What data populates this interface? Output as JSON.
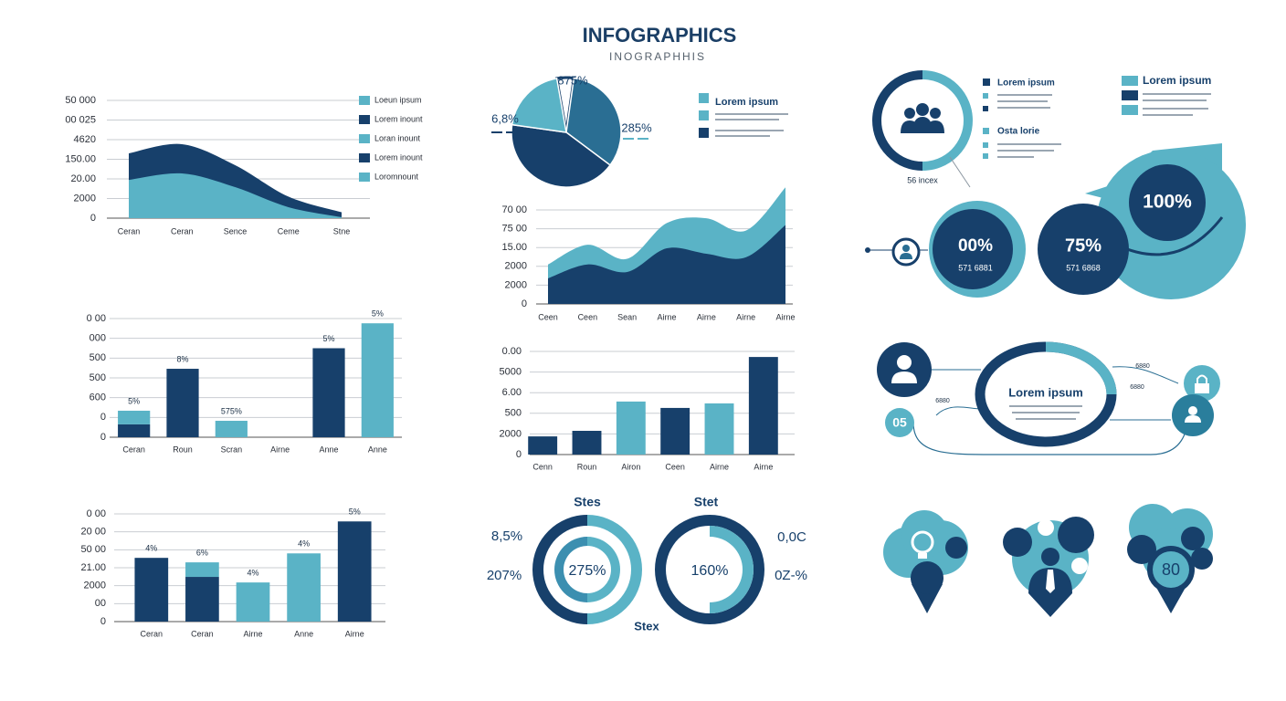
{
  "title": "INFOGRAPHICS",
  "subtitle": "INOGRAPHHIS",
  "chart_data": [
    {
      "type": "area",
      "categories": [
        "Ceran",
        "Ceran",
        "Sence",
        "Ceme",
        "Stne"
      ],
      "series": [
        {
          "color": "#17406b",
          "values": [
            33,
            37.7,
            27,
            11,
            3
          ]
        },
        {
          "color": "#5ab3c6",
          "values": [
            19.5,
            22.8,
            15.8,
            5.6,
            0.5
          ]
        }
      ],
      "ylim": [
        0,
        60
      ],
      "yticks": [
        0,
        {
          "value": 10,
          "label": "2000"
        },
        {
          "value": 20,
          "label": "20.00"
        },
        {
          "value": 30,
          "label": "150.00"
        },
        {
          "value": 40,
          "label": "4620"
        },
        {
          "value": 50,
          "label": "00 025"
        },
        {
          "value": 60,
          "label": "50 000"
        }
      ],
      "grid": true,
      "legend": [
        {
          "label": "Loeun ipsum",
          "color": "#5ab3c6"
        },
        {
          "label": "Lorem inount",
          "color": "#17406b"
        },
        {
          "label": "Loran inount",
          "color": "#5ab3c6"
        },
        {
          "label": "Lorem inount",
          "color": "#17406b"
        },
        {
          "label": "Loromnount",
          "color": "#5ab3c6"
        }
      ]
    },
    {
      "type": "pie",
      "values": [
        5,
        33,
        42,
        20
      ],
      "colors": [
        "#ffffff",
        "#2a6e93",
        "#17406b",
        "#5ab3c6"
      ],
      "annotations": [
        "875%",
        "285%",
        "6,8%"
      ],
      "legend_title": "Lorem ipsum",
      "legend_colors": [
        "#5ab3c6",
        "#5ab3c6",
        "#17406b"
      ]
    },
    {
      "type": "area",
      "categories": [
        "Ceen",
        "Ceen",
        "Sean",
        "Airne",
        "Airne",
        "Airne",
        "Airne"
      ],
      "series": [
        {
          "color": "#5ab3c6",
          "values": [
            21,
            31.5,
            24,
            43,
            45.6,
            39,
            62
          ]
        },
        {
          "color": "#17406b",
          "values": [
            13.6,
            21,
            17,
            29.6,
            26.7,
            24.8,
            42
          ]
        }
      ],
      "ylim": [
        0,
        50
      ],
      "yticks": [
        0,
        {
          "value": 10,
          "label": "2000"
        },
        {
          "value": 20,
          "label": "2000"
        },
        {
          "value": 30,
          "label": "15.00"
        },
        {
          "value": 40,
          "label": "75 00"
        },
        {
          "value": 50,
          "label": "70 00"
        }
      ],
      "grid": true
    },
    {
      "type": "bar",
      "categories": [
        "Ceran",
        "Roun",
        "Scran",
        "Airne",
        "Anne",
        "Anne"
      ],
      "series": [
        {
          "color": "#17406b",
          "values": [
            6.5,
            34.6,
            null,
            null,
            45,
            null
          ]
        },
        {
          "color": "#5ab3c6",
          "values": [
            6.9,
            null,
            8.3,
            null,
            null,
            57.6
          ]
        }
      ],
      "annotations": [
        "5%",
        "8%",
        "575%",
        null,
        "5%",
        "5%"
      ],
      "ylim": [
        0,
        60
      ],
      "yticks": [
        0,
        {
          "value": 10,
          "label": "0"
        },
        {
          "value": 20,
          "label": "600"
        },
        {
          "value": 30,
          "label": "500"
        },
        {
          "value": 40,
          "label": "500"
        },
        {
          "value": 50,
          "label": "000"
        },
        {
          "value": 60,
          "label": "0 00"
        }
      ],
      "grid": true
    },
    {
      "type": "bar",
      "categories": [
        "Cenn",
        "Roun",
        "Airon",
        "Ceen",
        "Airne",
        "Airne"
      ],
      "series": [
        {
          "values": [
            8.8,
            11.5,
            25.7,
            22.6,
            24.8,
            47.3
          ],
          "colors": [
            "#17406b",
            "#17406b",
            "#5ab3c6",
            "#17406b",
            "#5ab3c6",
            "#17406b"
          ]
        }
      ],
      "ylim": [
        0,
        50
      ],
      "yticks": [
        0,
        {
          "value": 10,
          "label": "2000"
        },
        {
          "value": 20,
          "label": "500"
        },
        {
          "value": 30,
          "label": "6.00"
        },
        {
          "value": 40,
          "label": "5000"
        },
        {
          "value": 50,
          "label": "0.00"
        }
      ],
      "grid": true
    },
    {
      "type": "bar",
      "categories": [
        "Ceran",
        "Ceran",
        "Airne",
        "Anne",
        "Airne"
      ],
      "series": [
        {
          "color": "#17406b",
          "values": [
            35.5,
            24.9,
            null,
            null,
            55.8
          ]
        },
        {
          "color": "#5ab3c6",
          "values": [
            null,
            8.1,
            21.8,
            38,
            null
          ]
        }
      ],
      "annotations": [
        "4%",
        "6%",
        "4%",
        "4%",
        "5%"
      ],
      "ylim": [
        0,
        60
      ],
      "yticks": [
        0,
        {
          "value": 10,
          "label": "00"
        },
        {
          "value": 20,
          "label": "2000"
        },
        {
          "value": 30,
          "label": "21.00"
        },
        {
          "value": 40,
          "label": "50 00"
        },
        {
          "value": 50,
          "label": "20 00"
        },
        {
          "value": 60,
          "label": "0 00"
        }
      ],
      "grid": true
    },
    {
      "type": "donut",
      "values": [
        50,
        50
      ],
      "colors": [
        "#5ab3c6",
        "#17406b"
      ],
      "title": "Stes",
      "center_label": "275%",
      "annotations": [
        "8,5%",
        "207%"
      ],
      "footer": "Stex"
    },
    {
      "type": "donut",
      "values": [
        50,
        50
      ],
      "colors": [
        "#17406b",
        "#17406b"
      ],
      "title": "Stet",
      "center_label": "160%",
      "annotations": [
        "0,0C",
        "0Z-%"
      ]
    }
  ],
  "panels": {
    "ring_caption": "56 incex",
    "legend_a": [
      "Lorem ipsum",
      "Osta lorie"
    ],
    "legend_b": "Lorem ipsum",
    "circles": [
      {
        "value": "00%",
        "sub": "571 6881"
      },
      {
        "value": "75%",
        "sub": "571 6868"
      },
      {
        "value": "100%"
      }
    ],
    "hub": {
      "label": "Lorem ipsum",
      "badge": "05",
      "tags": [
        "6880",
        "6880",
        "6880"
      ]
    },
    "bubble_badge": "80"
  }
}
